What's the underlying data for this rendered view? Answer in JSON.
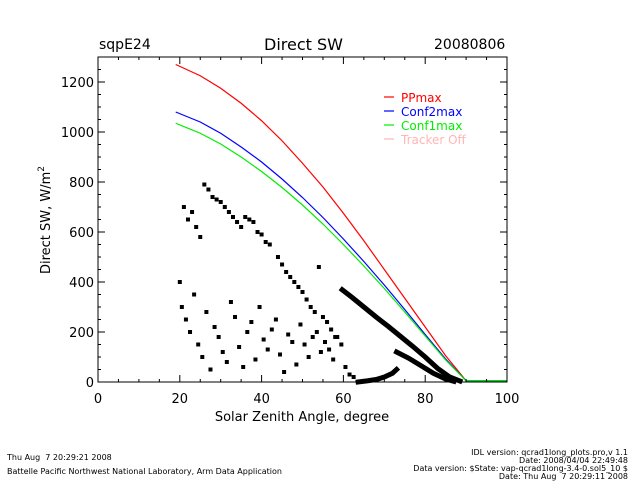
{
  "header": {
    "site": "sqpE24",
    "title": "Direct SW",
    "date": "20080806"
  },
  "footer": {
    "left_line1": "Thu Aug  7 20:29:21 2008",
    "left_line2": "Battelle Pacific Northwest National Laboratory, Arm Data Application",
    "right_line1": "IDL version: qcrad1long_plots.pro,v 1.1",
    "right_line2": "Date: 2008/04/04 22:49:48",
    "right_line3": "Data version: $State: vap-qcrad1long-3.4-0.sol5_10 $",
    "right_line4": "Date: Thu Aug  7 20:29:11 2008"
  },
  "colors": {
    "PPmax": "#ff0000",
    "Conf2max": "#0000ff",
    "Conf1max": "#00ee00",
    "Tracker Off": "#ffb6b6",
    "data": "#000000"
  },
  "chart_data": {
    "type": "scatter",
    "title": "Direct SW",
    "xlabel": "Solar Zenith Angle, degree",
    "ylabel": "Direct SW, W/m",
    "ylabel_superscript": "2",
    "xlim": [
      0,
      100
    ],
    "ylim": [
      0,
      1300
    ],
    "xticks": [
      0,
      20,
      40,
      60,
      80,
      100
    ],
    "xtick_labels": [
      "0",
      "20",
      "40",
      "60",
      "80",
      "100"
    ],
    "yticks": [
      0,
      200,
      400,
      600,
      800,
      1000,
      1200
    ],
    "ytick_labels": [
      "0",
      "200",
      "400",
      "600",
      "800",
      "1000",
      "1200"
    ],
    "grid": false,
    "legend_position": "top-right",
    "legend": [
      "PPmax",
      "Conf2max",
      "Conf1max",
      "Tracker Off"
    ],
    "series": [
      {
        "name": "PPmax",
        "type": "line",
        "x": [
          19,
          25,
          30,
          35,
          40,
          45,
          50,
          55,
          60,
          65,
          70,
          75,
          80,
          85,
          90,
          100
        ],
        "y": [
          1270,
          1225,
          1175,
          1115,
          1045,
          965,
          875,
          780,
          675,
          565,
          450,
          335,
          220,
          105,
          5,
          5
        ]
      },
      {
        "name": "Conf2max",
        "type": "line",
        "x": [
          19,
          25,
          30,
          35,
          40,
          45,
          50,
          55,
          60,
          65,
          70,
          75,
          80,
          85,
          90,
          100
        ],
        "y": [
          1080,
          1040,
          995,
          940,
          880,
          812,
          738,
          658,
          572,
          482,
          388,
          290,
          190,
          92,
          5,
          5
        ]
      },
      {
        "name": "Conf1max",
        "type": "line",
        "x": [
          19,
          25,
          30,
          35,
          40,
          45,
          50,
          55,
          60,
          65,
          70,
          75,
          80,
          85,
          90,
          100
        ],
        "y": [
          1035,
          995,
          952,
          900,
          842,
          778,
          708,
          632,
          550,
          464,
          374,
          280,
          184,
          88,
          5,
          5
        ]
      },
      {
        "name": "Tracker Off",
        "type": "line",
        "x": [],
        "y": []
      },
      {
        "name": "Measured (clear-sky branch)",
        "type": "dense-line",
        "x": [
          59.7,
          62,
          65,
          68,
          71,
          74,
          77,
          80,
          83,
          86,
          88.5
        ],
        "y": [
          369,
          340,
          300,
          260,
          222,
          182,
          142,
          100,
          55,
          20,
          4
        ]
      },
      {
        "name": "Measured (lower branch)",
        "type": "dense-line",
        "x": [
          73,
          76,
          79,
          82,
          85,
          87
        ],
        "y": [
          120,
          95,
          65,
          35,
          12,
          3
        ]
      },
      {
        "name": "Measured (rising)",
        "type": "dense-line",
        "x": [
          63.6,
          66,
          68,
          70,
          72,
          73
        ],
        "y": [
          0,
          5,
          10,
          20,
          35,
          50
        ]
      },
      {
        "name": "Measured (scatter)",
        "type": "scatter",
        "x": [
          26,
          27,
          28,
          29,
          30,
          31,
          32,
          33,
          34,
          35,
          36,
          37,
          38,
          39,
          40,
          41,
          42,
          21,
          22,
          23,
          24,
          25,
          20,
          20.5,
          21.5,
          22.5,
          23.5,
          24.5,
          25.5,
          26.5,
          27.5,
          28.5,
          29.5,
          30.5,
          31.5,
          32.5,
          33.5,
          34.5,
          35.5,
          36.5,
          37.5,
          38.5,
          39.5,
          40.5,
          41.5,
          42.5,
          43.5,
          44.5,
          45.5,
          46.5,
          47.5,
          48.5,
          49.5,
          50.5,
          51.5,
          52.5,
          53.5,
          54.5,
          55.5,
          56.5,
          57.5,
          58.5,
          59.5,
          60.5,
          61.5,
          62.5,
          44,
          45,
          46,
          47,
          48,
          49,
          50,
          51,
          52,
          53,
          54,
          55,
          56,
          57,
          58
        ],
        "y": [
          790,
          770,
          740,
          730,
          720,
          700,
          680,
          660,
          640,
          620,
          660,
          650,
          640,
          600,
          590,
          560,
          550,
          700,
          650,
          680,
          620,
          580,
          400,
          300,
          250,
          200,
          350,
          150,
          100,
          280,
          50,
          220,
          180,
          120,
          80,
          320,
          260,
          140,
          60,
          200,
          240,
          90,
          300,
          170,
          130,
          210,
          250,
          110,
          40,
          190,
          160,
          70,
          230,
          150,
          100,
          180,
          200,
          120,
          160,
          130,
          90,
          180,
          150,
          60,
          30,
          20,
          500,
          470,
          440,
          420,
          400,
          380,
          360,
          330,
          300,
          280,
          460,
          260,
          240,
          210,
          180
        ]
      }
    ]
  }
}
